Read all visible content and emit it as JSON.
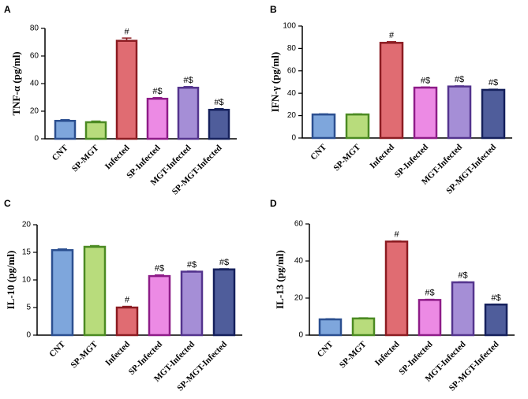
{
  "colors": {
    "fills": [
      "#7ea6dc",
      "#b8dc7c",
      "#e06c72",
      "#ec8ae4",
      "#a58ed6",
      "#4f5d9b"
    ],
    "strokes": [
      "#2b4f90",
      "#4b8a22",
      "#8c1c22",
      "#8e1c88",
      "#54348e",
      "#15205c"
    ]
  },
  "chart_data": [
    {
      "panel": "A",
      "type": "bar",
      "ylabel": "TNF-α (pg/ml)",
      "ylim": [
        0,
        80
      ],
      "yticks": [
        0,
        20,
        40,
        60,
        80
      ],
      "categories": [
        "CNT",
        "SP-MGT",
        "Infected",
        "SP-Infected",
        "MGT-Infected",
        "SP-MGT-Infected"
      ],
      "values": [
        13,
        12,
        71,
        29,
        37,
        21
      ],
      "errors": [
        0.8,
        0.8,
        2,
        0.8,
        0.8,
        0.8
      ],
      "annotations": [
        "",
        "",
        "#",
        "#$",
        "#$",
        "#$"
      ]
    },
    {
      "panel": "B",
      "type": "bar",
      "ylabel": "IFN-γ (pg/ml)",
      "ylim": [
        0,
        100
      ],
      "yticks": [
        0,
        20,
        40,
        60,
        80,
        100
      ],
      "categories": [
        "CNT",
        "SP-MGT",
        "Infected",
        "SP-Infected",
        "MGT-Infected",
        "SP-MGT-Infected"
      ],
      "values": [
        21,
        21,
        85,
        45,
        46,
        43
      ],
      "errors": [
        0.5,
        0.5,
        1,
        0.5,
        0.5,
        0.5
      ],
      "annotations": [
        "",
        "",
        "#",
        "#$",
        "#$",
        "#$"
      ]
    },
    {
      "panel": "C",
      "type": "bar",
      "ylabel": "IL-10 (pg/ml)",
      "ylim": [
        0,
        20
      ],
      "yticks": [
        0,
        5,
        10,
        15,
        20
      ],
      "categories": [
        "CNT",
        "SP-MGT",
        "Infected",
        "SP-Infected",
        "MGT-Infected",
        "SP-MGT-Infected"
      ],
      "values": [
        15.4,
        16,
        5,
        10.7,
        11.5,
        11.9
      ],
      "errors": [
        0.2,
        0.2,
        0.2,
        0.2,
        0.1,
        0.1
      ],
      "annotations": [
        "",
        "",
        "#",
        "#$",
        "#$",
        "#$"
      ]
    },
    {
      "panel": "D",
      "type": "bar",
      "ylabel": "IL-13 (pg/ml)",
      "ylim": [
        0,
        60
      ],
      "yticks": [
        0,
        20,
        40,
        60
      ],
      "categories": [
        "CNT",
        "SP-MGT",
        "Infected",
        "SP-Infected",
        "MGT-Infected",
        "SP-MGT-Infected"
      ],
      "values": [
        8.5,
        9,
        50.5,
        19,
        28.5,
        16.5
      ],
      "errors": [
        0.3,
        0.3,
        0.3,
        0.3,
        0.2,
        0.2
      ],
      "annotations": [
        "",
        "",
        "#",
        "#$",
        "#$",
        "#$"
      ]
    }
  ]
}
